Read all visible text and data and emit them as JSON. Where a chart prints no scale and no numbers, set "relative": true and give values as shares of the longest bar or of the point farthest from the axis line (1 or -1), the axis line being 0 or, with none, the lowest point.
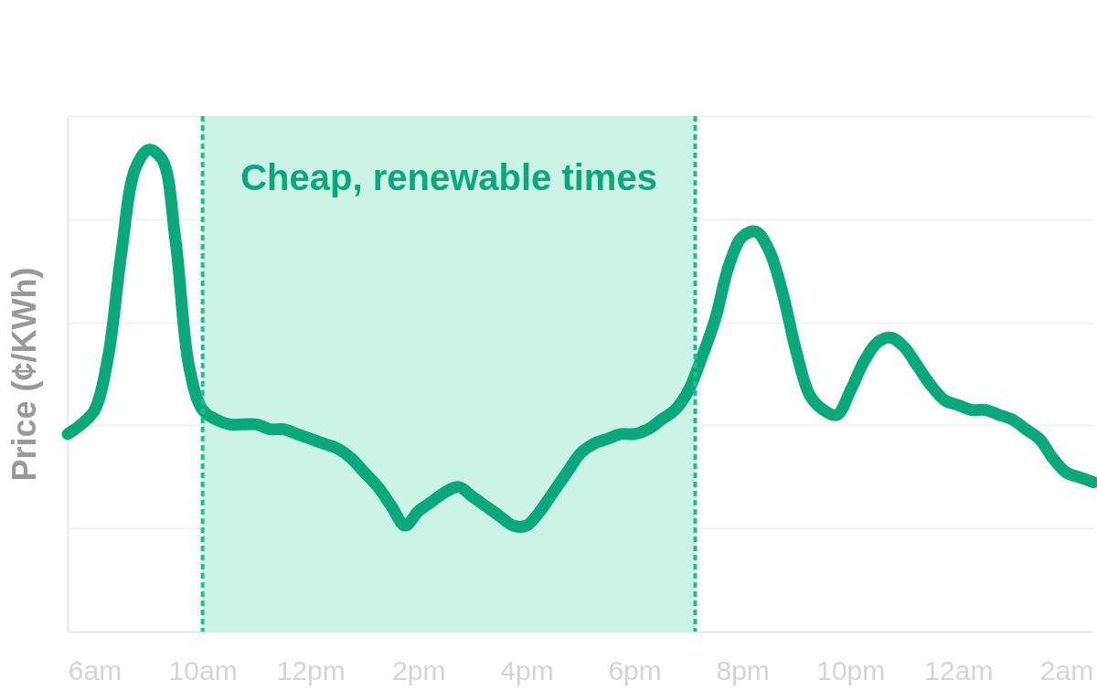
{
  "chart_data": {
    "type": "line",
    "relative": true,
    "ylabel": "Price (¢/KWh)",
    "color": "#0aa87a",
    "categories": [
      null,
      null,
      "6am",
      null,
      null,
      null,
      null,
      null,
      null,
      null,
      "10am",
      null,
      null,
      null,
      null,
      null,
      null,
      null,
      "12pm",
      null,
      null,
      null,
      null,
      null,
      null,
      null,
      "2pm",
      null,
      null,
      null,
      null,
      null,
      null,
      null,
      "4pm",
      null,
      null,
      null,
      null,
      null,
      null,
      null,
      "6pm",
      null,
      null,
      null,
      null,
      null,
      null,
      null,
      "8pm",
      null,
      null,
      null,
      null,
      null,
      null,
      null,
      "10pm",
      null,
      null,
      null,
      null,
      null,
      null,
      null,
      "12am",
      null,
      null,
      null,
      null,
      null,
      null,
      null,
      "2am",
      null,
      null
    ],
    "values": [
      0.41,
      0.43,
      0.46,
      0.57,
      0.79,
      0.96,
      1.0,
      0.98,
      0.81,
      0.55,
      0.46,
      0.44,
      0.43,
      0.43,
      0.43,
      0.42,
      0.42,
      0.41,
      0.4,
      0.39,
      0.38,
      0.36,
      0.33,
      0.3,
      0.26,
      0.22,
      0.25,
      0.27,
      0.29,
      0.3,
      0.28,
      0.26,
      0.24,
      0.22,
      0.22,
      0.25,
      0.29,
      0.33,
      0.37,
      0.39,
      0.4,
      0.41,
      0.41,
      0.42,
      0.44,
      0.46,
      0.5,
      0.57,
      0.65,
      0.76,
      0.82,
      0.83,
      0.79,
      0.7,
      0.58,
      0.49,
      0.46,
      0.45,
      0.5,
      0.56,
      0.6,
      0.61,
      0.59,
      0.55,
      0.51,
      0.48,
      0.47,
      0.46,
      0.46,
      0.45,
      0.44,
      0.42,
      0.4,
      0.36,
      0.33,
      0.32,
      0.31
    ],
    "grid": "y",
    "annotations": [
      "Cheap, renewable times"
    ]
  }
}
